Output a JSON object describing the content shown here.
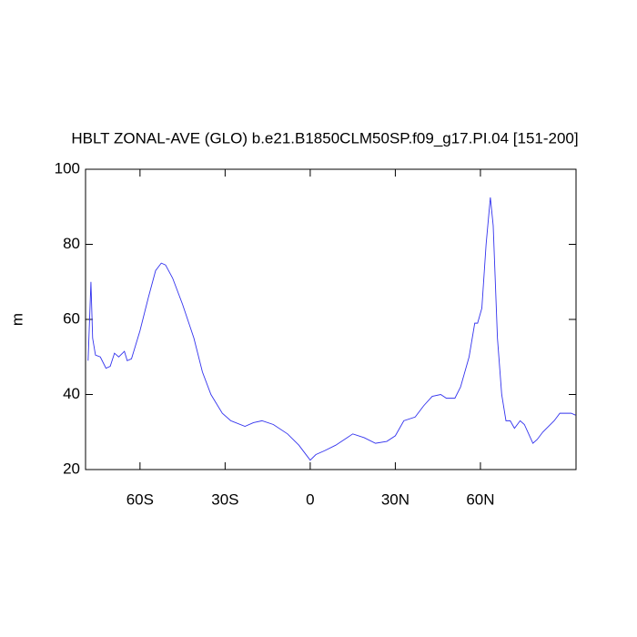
{
  "chart_data": {
    "type": "line",
    "title": "HBLT ZONAL-AVE (GLO) b.e21.B1850CLM50SP.f09_g17.PI.04 [151-200]",
    "y_label": "m",
    "xlim": [
      -79.2,
      93.7
    ],
    "ylim": [
      20,
      100
    ],
    "xticks": [
      {
        "value": -60,
        "label": "60S"
      },
      {
        "value": -30,
        "label": "30S"
      },
      0,
      {
        "value": 30,
        "label": "30N"
      },
      {
        "value": 60,
        "label": "60N"
      }
    ],
    "yticks": [
      20,
      40,
      60,
      80,
      100
    ],
    "series": [
      {
        "color": "#3333ee",
        "x": [
          -78.3,
          -77.3,
          -76.7,
          -75.7,
          -74,
          -72,
          -70.5,
          -69,
          -67.5,
          -65.5,
          -64.5,
          -63,
          -60,
          -57,
          -54.5,
          -52.5,
          -51,
          -48.5,
          -45,
          -41,
          -38,
          -35,
          -31,
          -28,
          -23,
          -20,
          -17,
          -13,
          -8,
          -4,
          -1,
          0,
          2,
          5,
          9,
          13,
          15,
          19,
          23,
          27,
          30,
          33,
          37,
          40,
          43,
          46,
          48,
          51,
          53,
          56,
          58,
          59,
          60.5,
          62,
          63.5,
          64.5,
          66,
          67.5,
          69,
          70.5,
          72,
          74,
          75.5,
          77,
          78.5,
          80,
          82,
          86,
          88,
          92,
          93.5
        ],
        "values": [
          49,
          70,
          55,
          50.5,
          50,
          47,
          47.5,
          51,
          50,
          51.5,
          49,
          49.5,
          57,
          66,
          73,
          75,
          74.5,
          71,
          64,
          55,
          46,
          40,
          35,
          33,
          31.5,
          32.5,
          33,
          32,
          29.5,
          26.5,
          23.5,
          22.5,
          24,
          25,
          26.5,
          28.5,
          29.5,
          28.5,
          27,
          27.5,
          29,
          33,
          34,
          37,
          39.5,
          40,
          39,
          39,
          42,
          50,
          59,
          59,
          63,
          80,
          92.5,
          85,
          55,
          40,
          33,
          33,
          31,
          33,
          32,
          29.5,
          27,
          28,
          30,
          33,
          35,
          35,
          34.5
        ]
      }
    ]
  }
}
